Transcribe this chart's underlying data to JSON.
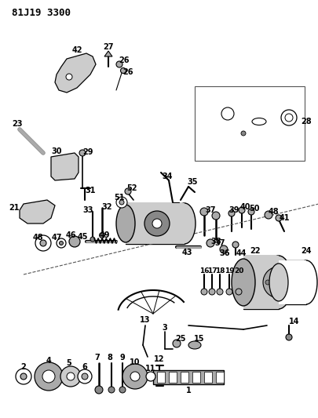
{
  "title": "81J19 3300",
  "bg": "#ffffff",
  "fg": "#000000",
  "figsize": [
    4.06,
    5.33
  ],
  "dpi": 100
}
